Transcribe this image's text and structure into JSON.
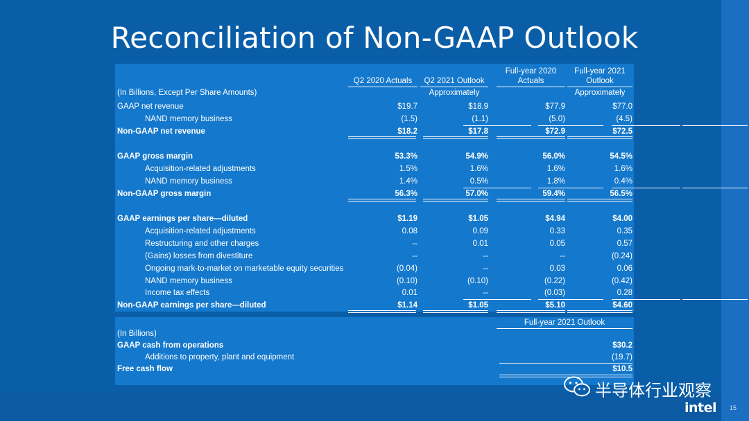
{
  "slide": {
    "title": "Reconciliation of Non-GAAP Outlook",
    "page_number": "15",
    "logo": "intel",
    "watermark": "半导体行业观察"
  },
  "table": {
    "columns": [
      "Q2 2020 Actuals",
      "Q2 2021 Outlook",
      "Full-year 2020 Actuals",
      "Full-year 2021 Outlook"
    ],
    "col_head_lines": {
      "c2_line1": "Full-year 2020",
      "c2_line2": "Actuals",
      "c3_line1": "Full-year 2021",
      "c3_line2": "Outlook"
    },
    "units_label": "(In Billions, Except Per Share Amounts)",
    "approx_q2_2021": "Approximately",
    "approx_fy_2021": "Approximately",
    "rows": [
      {
        "label": "GAAP net revenue",
        "v": [
          "$19.7",
          "$18.9",
          "$77.9",
          "$77.0"
        ]
      },
      {
        "label": "NAND memory business",
        "v": [
          "(1.5)",
          "(1.1)",
          "(5.0)",
          "(4.5)"
        ]
      },
      {
        "label": "Non-GAAP  net revenue",
        "v": [
          "$18.2",
          "$17.8",
          "$72.9",
          "$72.5"
        ]
      },
      {
        "label": "GAAP gross margin",
        "v": [
          "53.3%",
          "54.9%",
          "56.0%",
          "54.5%"
        ]
      },
      {
        "label": "Acquisition-related adjustments",
        "v": [
          "1.5%",
          "1.6%",
          "1.6%",
          "1.6%"
        ]
      },
      {
        "label": "NAND memory business",
        "v": [
          "1.4%",
          "0.5%",
          "1.8%",
          "0.4%"
        ]
      },
      {
        "label": "Non-GAAP gross margin",
        "v": [
          "56.3%",
          "57.0%",
          "59.4%",
          "56.5%"
        ]
      },
      {
        "label": "GAAP earnings per share—diluted",
        "v": [
          "$1.19",
          "$1.05",
          "$4.94",
          "$4.00"
        ]
      },
      {
        "label": "Acquisition-related adjustments",
        "v": [
          "0.08",
          "0.09",
          "0.33",
          "0.35"
        ]
      },
      {
        "label": "Restructuring and other charges",
        "v": [
          "--",
          "0.01",
          "0.05",
          "0.57"
        ]
      },
      {
        "label": "(Gains) losses from divestiture",
        "v": [
          "--",
          "--",
          "--",
          "(0.24)"
        ]
      },
      {
        "label": "Ongoing mark-to-market on marketable equity securities",
        "v": [
          "(0.04)",
          "--",
          "0.03",
          "0.06"
        ]
      },
      {
        "label": "NAND memory business",
        "v": [
          "(0.10)",
          "(0.10)",
          "(0.22)",
          "(0.42)"
        ]
      },
      {
        "label": "Income tax effects",
        "v": [
          "0.01",
          "--",
          "(0.03)",
          "0.28"
        ]
      },
      {
        "label": "Non-GAAP earnings per share—diluted",
        "v": [
          "$1.14",
          "$1.05",
          "$5.10",
          "$4.60"
        ]
      }
    ]
  },
  "cash": {
    "column": "Full-year 2021 Outlook",
    "units_label": "(In Billions)",
    "rows": [
      {
        "label": "GAAP cash from operations",
        "v": "$30.2"
      },
      {
        "label": "Additions to property, plant and equipment",
        "v": "(19.7)"
      },
      {
        "label": "Free cash flow",
        "v": "$10.5"
      }
    ]
  },
  "colors": {
    "slide_bg": "#0a5ea8",
    "panel_bg": "#1478cc",
    "text": "#ffffff"
  }
}
